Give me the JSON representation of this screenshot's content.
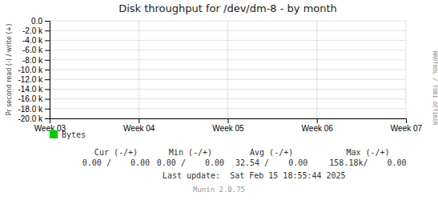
{
  "chart_data": {
    "type": "line",
    "title": "Disk throughput for /dev/dm-8 - by month",
    "y_label": "Pr second read (-) / write (+)",
    "categories": [
      "Week 03",
      "Week 04",
      "Week 05",
      "Week 06",
      "Week 07"
    ],
    "series": [
      {
        "name": "Bytes",
        "color": "#00CC00",
        "values": [
          null,
          null,
          null,
          null,
          null
        ]
      }
    ],
    "ylim": [
      -20000,
      0
    ],
    "yticks": [
      {
        "value": 0,
        "label": "0.0"
      },
      {
        "value": -2000,
        "label": "-2.0 k"
      },
      {
        "value": -4000,
        "label": "-4.0 k"
      },
      {
        "value": -6000,
        "label": "-6.0 k"
      },
      {
        "value": -8000,
        "label": "-8.0 k"
      },
      {
        "value": -10000,
        "label": "-10.0 k"
      },
      {
        "value": -12000,
        "label": "-12.0 k"
      },
      {
        "value": -14000,
        "label": "-14.0 k"
      },
      {
        "value": -16000,
        "label": "-16.0 k"
      },
      {
        "value": -18000,
        "label": "-18.0 k"
      },
      {
        "value": -20000,
        "label": "-20.0 k"
      }
    ],
    "grid": true,
    "legend": "bottom",
    "footer_headers": [
      "Cur (-/+)",
      "Min (-/+)",
      "Avg (-/+)",
      "Max (-/+)"
    ],
    "footer_values": [
      "0.00 /    0.00",
      "0.00 /    0.00",
      "32.54 /    0.00",
      "158.18k/    0.00"
    ],
    "annotations": [
      "RRDTOOL / TOBI OETIKER",
      "Last update:  Sat Feb 15 18:55:44 2025",
      "Munin 2.0.75"
    ]
  }
}
